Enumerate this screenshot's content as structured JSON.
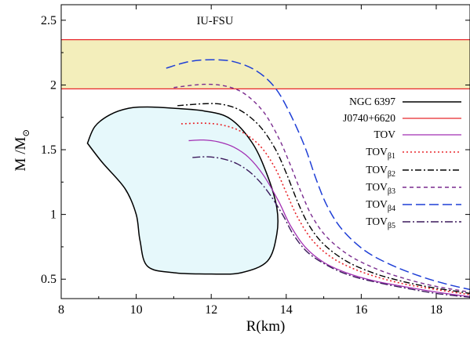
{
  "chart_data": {
    "type": "line",
    "title": "",
    "xlabel": "R(km)",
    "ylabel_main": "M /M",
    "ylabel_sub": "⊙",
    "xlim": [
      8,
      18.9
    ],
    "ylim": [
      0.35,
      2.62
    ],
    "xticks": [
      8,
      10,
      12,
      14,
      16,
      18
    ],
    "yticks": [
      0.5,
      1,
      1.5,
      2,
      2.5
    ],
    "xtick_labels": [
      "8",
      "10",
      "12",
      "14",
      "16",
      "18"
    ],
    "ytick_labels": [
      "0.5",
      "1",
      "1.5",
      "2",
      "2.5"
    ],
    "grid": false,
    "legend_position": "right",
    "band": {
      "name": "J0740+6620",
      "label": "IU-FSU",
      "y_low": 1.97,
      "y_high": 2.35,
      "fill": "#f3eebb",
      "line_color": "#e8272c"
    },
    "region": {
      "name": "NGC 6397",
      "fill": "#e6f8fb",
      "stroke": "#000000",
      "points": [
        [
          8.7,
          1.55
        ],
        [
          8.9,
          1.68
        ],
        [
          9.3,
          1.77
        ],
        [
          9.8,
          1.82
        ],
        [
          10.3,
          1.83
        ],
        [
          11.0,
          1.82
        ],
        [
          11.8,
          1.8
        ],
        [
          12.5,
          1.74
        ],
        [
          13.1,
          1.55
        ],
        [
          13.5,
          1.3
        ],
        [
          13.75,
          1.05
        ],
        [
          13.75,
          0.85
        ],
        [
          13.5,
          0.64
        ],
        [
          12.8,
          0.55
        ],
        [
          12.0,
          0.54
        ],
        [
          11.0,
          0.55
        ],
        [
          10.3,
          0.6
        ],
        [
          10.1,
          0.8
        ],
        [
          10.0,
          1.0
        ],
        [
          9.7,
          1.2
        ],
        [
          9.1,
          1.4
        ],
        [
          8.7,
          1.55
        ]
      ]
    },
    "series": [
      {
        "name": "TOV",
        "sub": "",
        "color": "#a22fb3",
        "dash": "",
        "width": 1.3,
        "points": [
          [
            11.4,
            1.57
          ],
          [
            11.8,
            1.575
          ],
          [
            12.2,
            1.56
          ],
          [
            12.6,
            1.52
          ],
          [
            13.0,
            1.44
          ],
          [
            13.4,
            1.3
          ],
          [
            13.8,
            1.1
          ],
          [
            14.1,
            0.92
          ],
          [
            14.5,
            0.75
          ],
          [
            15.0,
            0.63
          ],
          [
            15.6,
            0.55
          ],
          [
            16.3,
            0.49
          ],
          [
            17.0,
            0.45
          ],
          [
            17.8,
            0.41
          ],
          [
            18.5,
            0.38
          ],
          [
            18.9,
            0.365
          ]
        ]
      },
      {
        "name": "TOV",
        "sub": "β1",
        "color": "#e8272c",
        "dash": "2,3",
        "width": 1.6,
        "points": [
          [
            11.2,
            1.7
          ],
          [
            11.8,
            1.705
          ],
          [
            12.3,
            1.69
          ],
          [
            12.8,
            1.64
          ],
          [
            13.3,
            1.53
          ],
          [
            13.7,
            1.36
          ],
          [
            14.0,
            1.17
          ],
          [
            14.3,
            0.98
          ],
          [
            14.7,
            0.8
          ],
          [
            15.2,
            0.67
          ],
          [
            15.8,
            0.58
          ],
          [
            16.5,
            0.51
          ],
          [
            17.2,
            0.46
          ],
          [
            18.0,
            0.42
          ],
          [
            18.9,
            0.38
          ]
        ]
      },
      {
        "name": "TOV",
        "sub": "β2",
        "color": "#000000",
        "dash": "8,3,2,3",
        "width": 1.4,
        "points": [
          [
            11.1,
            1.84
          ],
          [
            11.8,
            1.855
          ],
          [
            12.3,
            1.85
          ],
          [
            12.8,
            1.8
          ],
          [
            13.3,
            1.68
          ],
          [
            13.7,
            1.51
          ],
          [
            14.0,
            1.32
          ],
          [
            14.3,
            1.1
          ],
          [
            14.6,
            0.92
          ],
          [
            15.0,
            0.77
          ],
          [
            15.6,
            0.64
          ],
          [
            16.3,
            0.55
          ],
          [
            17.0,
            0.49
          ],
          [
            17.8,
            0.44
          ],
          [
            18.9,
            0.39
          ]
        ]
      },
      {
        "name": "TOV",
        "sub": "β3",
        "color": "#7a2c8f",
        "dash": "5,4",
        "width": 1.4,
        "points": [
          [
            11.0,
            1.98
          ],
          [
            11.8,
            2.005
          ],
          [
            12.4,
            1.99
          ],
          [
            12.9,
            1.93
          ],
          [
            13.4,
            1.79
          ],
          [
            13.8,
            1.59
          ],
          [
            14.1,
            1.39
          ],
          [
            14.4,
            1.17
          ],
          [
            14.7,
            0.98
          ],
          [
            15.1,
            0.82
          ],
          [
            15.7,
            0.68
          ],
          [
            16.4,
            0.58
          ],
          [
            17.1,
            0.51
          ],
          [
            17.9,
            0.45
          ],
          [
            18.9,
            0.4
          ]
        ]
      },
      {
        "name": "TOV",
        "sub": "β4",
        "color": "#1f3fd6",
        "dash": "12,5",
        "width": 1.5,
        "points": [
          [
            10.8,
            2.13
          ],
          [
            11.4,
            2.18
          ],
          [
            12.0,
            2.195
          ],
          [
            12.6,
            2.18
          ],
          [
            13.2,
            2.11
          ],
          [
            13.7,
            1.98
          ],
          [
            14.1,
            1.78
          ],
          [
            14.5,
            1.52
          ],
          [
            14.8,
            1.27
          ],
          [
            15.1,
            1.06
          ],
          [
            15.5,
            0.88
          ],
          [
            16.1,
            0.72
          ],
          [
            16.8,
            0.61
          ],
          [
            17.6,
            0.52
          ],
          [
            18.3,
            0.46
          ],
          [
            18.9,
            0.42
          ]
        ]
      },
      {
        "name": "TOV",
        "sub": "β5",
        "color": "#3b1a5c",
        "dash": "10,3,2,3",
        "width": 1.4,
        "points": [
          [
            11.5,
            1.44
          ],
          [
            11.9,
            1.445
          ],
          [
            12.3,
            1.43
          ],
          [
            12.7,
            1.39
          ],
          [
            13.1,
            1.31
          ],
          [
            13.5,
            1.18
          ],
          [
            13.9,
            1.0
          ],
          [
            14.2,
            0.84
          ],
          [
            14.6,
            0.7
          ],
          [
            15.2,
            0.59
          ],
          [
            15.8,
            0.52
          ],
          [
            16.5,
            0.47
          ],
          [
            17.2,
            0.43
          ],
          [
            18.0,
            0.39
          ],
          [
            18.9,
            0.36
          ]
        ]
      }
    ],
    "legend": [
      {
        "name": "NGC 6397",
        "sub": "",
        "color": "#000000",
        "dash": "",
        "width": 1.5
      },
      {
        "name": "J0740+6620",
        "sub": "",
        "color": "#e8272c",
        "dash": "",
        "width": 1.3
      },
      {
        "name": "TOV",
        "sub": "",
        "color": "#a22fb3",
        "dash": "",
        "width": 1.3
      },
      {
        "name": "TOV",
        "sub": "β1",
        "color": "#e8272c",
        "dash": "2,3",
        "width": 1.6
      },
      {
        "name": "TOV",
        "sub": "β2",
        "color": "#000000",
        "dash": "8,3,2,3",
        "width": 1.4
      },
      {
        "name": "TOV",
        "sub": "β3",
        "color": "#7a2c8f",
        "dash": "5,4",
        "width": 1.4
      },
      {
        "name": "TOV",
        "sub": "β4",
        "color": "#1f3fd6",
        "dash": "12,5",
        "width": 1.5
      },
      {
        "name": "TOV",
        "sub": "β5",
        "color": "#3b1a5c",
        "dash": "10,3,2,3",
        "width": 1.4
      }
    ]
  }
}
